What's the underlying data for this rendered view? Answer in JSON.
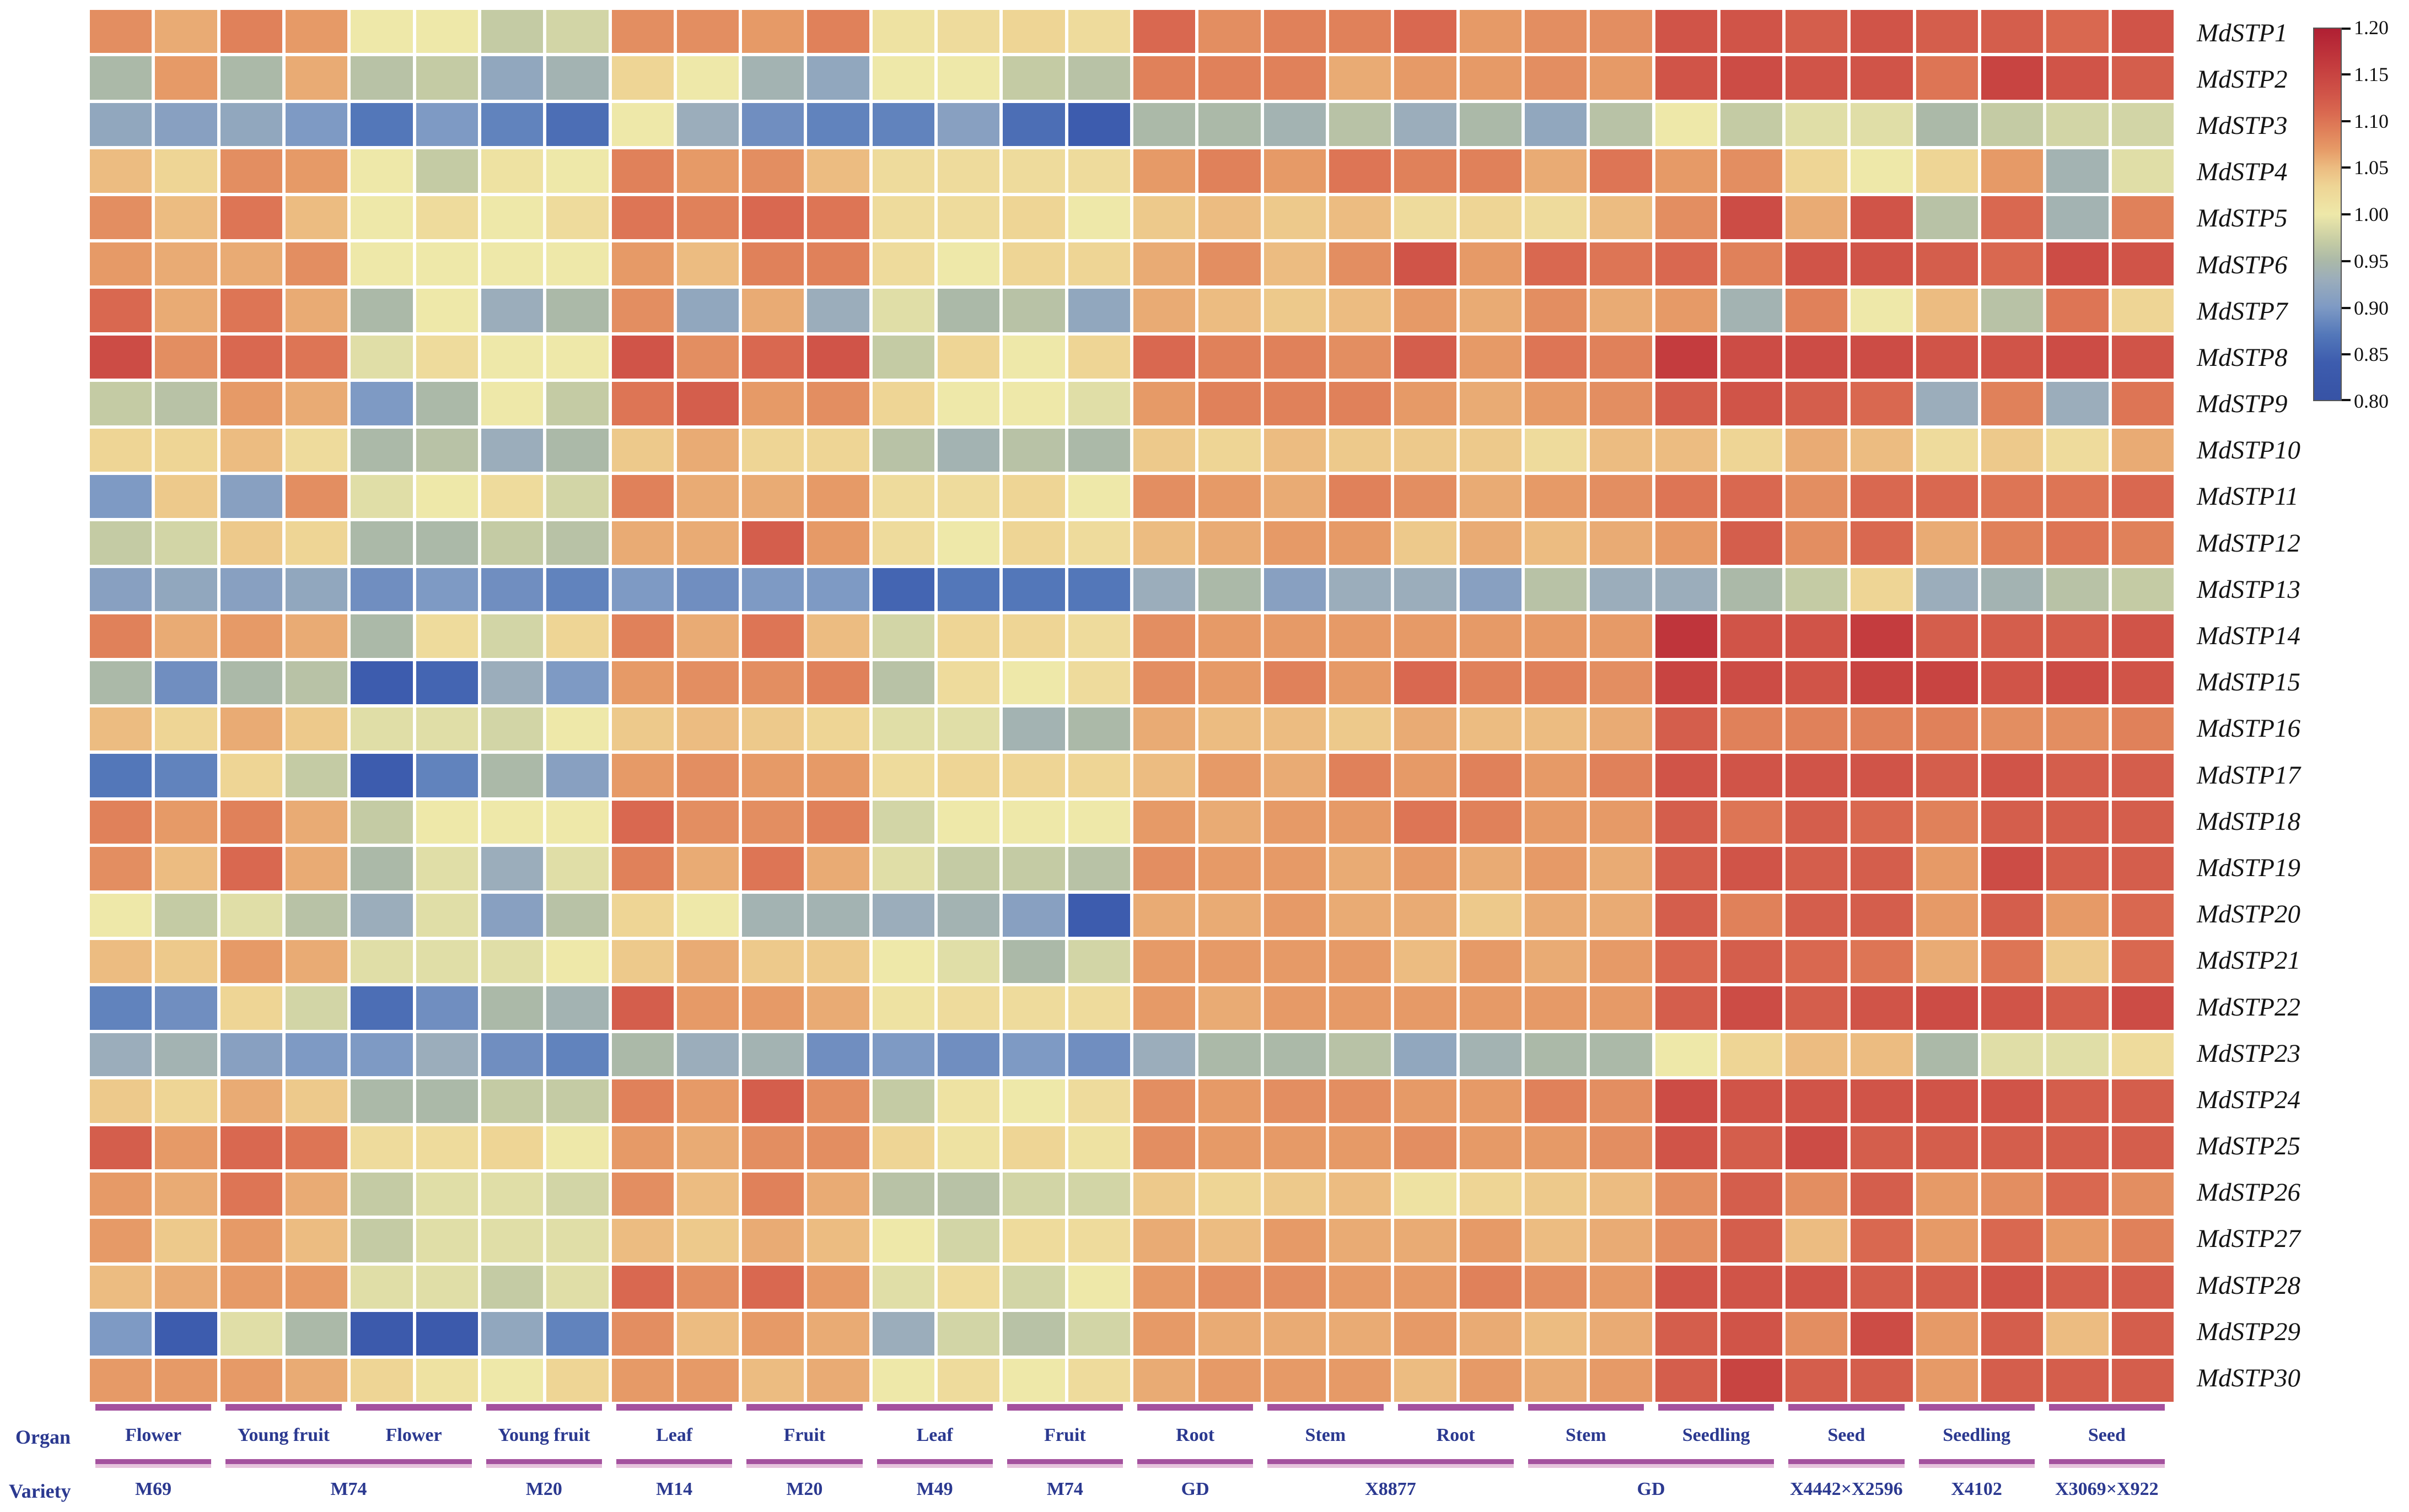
{
  "labels": {
    "organ": "Organ",
    "variety": "Variety"
  },
  "colorbar": {
    "tick_labels": [
      "1.20",
      "1.15",
      "1.10",
      "1.05",
      "1.00",
      "0.95",
      "0.90",
      "0.85",
      "0.80"
    ],
    "vmin": 0.8,
    "vmax": 1.2
  },
  "organ_groups": [
    {
      "label": "Flower",
      "span": 2
    },
    {
      "label": "Young fruit",
      "span": 2
    },
    {
      "label": "Flower",
      "span": 2
    },
    {
      "label": "Young fruit",
      "span": 2
    },
    {
      "label": "Leaf",
      "span": 2
    },
    {
      "label": "Fruit",
      "span": 2
    },
    {
      "label": "Leaf",
      "span": 2
    },
    {
      "label": "Fruit",
      "span": 2
    },
    {
      "label": "Root",
      "span": 2
    },
    {
      "label": "Stem",
      "span": 2
    },
    {
      "label": "Root",
      "span": 2
    },
    {
      "label": "Stem",
      "span": 2
    },
    {
      "label": "Seedling",
      "span": 2
    },
    {
      "label": "Seed",
      "span": 2
    },
    {
      "label": "Seedling",
      "span": 2
    },
    {
      "label": "Seed",
      "span": 2
    }
  ],
  "variety_groups": [
    {
      "label": "M69",
      "span": 2
    },
    {
      "label": "M74",
      "span": 4
    },
    {
      "label": "M20",
      "span": 2
    },
    {
      "label": "M14",
      "span": 2
    },
    {
      "label": "M20",
      "span": 2
    },
    {
      "label": "M49",
      "span": 2
    },
    {
      "label": "M74",
      "span": 2
    },
    {
      "label": "GD",
      "span": 2
    },
    {
      "label": "X8877",
      "span": 4
    },
    {
      "label": "GD",
      "span": 4
    },
    {
      "label": "X4442×X2596",
      "span": 2
    },
    {
      "label": "X4102",
      "span": 2
    },
    {
      "label": "X3069×X922",
      "span": 2
    }
  ],
  "chart_data": {
    "type": "heatmap",
    "title": "",
    "rows": [
      "MdSTP1",
      "MdSTP2",
      "MdSTP3",
      "MdSTP4",
      "MdSTP5",
      "MdSTP6",
      "MdSTP7",
      "MdSTP8",
      "MdSTP9",
      "MdSTP10",
      "MdSTP11",
      "MdSTP12",
      "MdSTP13",
      "MdSTP14",
      "MdSTP15",
      "MdSTP16",
      "MdSTP17",
      "MdSTP18",
      "MdSTP19",
      "MdSTP20",
      "MdSTP21",
      "MdSTP22",
      "MdSTP23",
      "MdSTP24",
      "MdSTP25",
      "MdSTP26",
      "MdSTP27",
      "MdSTP28",
      "MdSTP29",
      "MdSTP30"
    ],
    "n_columns": 32,
    "column_group_note": "columns grouped in pairs by organ (16 groups) and by variety (13 groups), see organ_groups / variety_groups",
    "vmin": 0.8,
    "vmax": 1.2,
    "legend_ticks": [
      1.2,
      1.15,
      1.1,
      1.05,
      1.0,
      0.95,
      0.9,
      0.85,
      0.8
    ],
    "colormap_anchors": [
      [
        0.8,
        "#3753a5"
      ],
      [
        0.84,
        "#3d5cae"
      ],
      [
        0.87,
        "#5377b9"
      ],
      [
        0.9,
        "#7e9ac4"
      ],
      [
        0.93,
        "#9badbb"
      ],
      [
        0.95,
        "#abb9a8"
      ],
      [
        0.97,
        "#c4cba4"
      ],
      [
        1.0,
        "#eee8a9"
      ],
      [
        1.03,
        "#eed595"
      ],
      [
        1.05,
        "#ecbc81"
      ],
      [
        1.07,
        "#e69a67"
      ],
      [
        1.09,
        "#e0815a"
      ],
      [
        1.11,
        "#d96850"
      ],
      [
        1.13,
        "#d05448"
      ],
      [
        1.16,
        "#c43c3e"
      ],
      [
        1.2,
        "#b01f33"
      ]
    ],
    "values": [
      [
        1.08,
        1.06,
        1.09,
        1.07,
        1.0,
        1.0,
        0.97,
        0.98,
        1.08,
        1.08,
        1.07,
        1.09,
        1.01,
        1.02,
        1.03,
        1.02,
        1.11,
        1.08,
        1.09,
        1.09,
        1.11,
        1.07,
        1.08,
        1.08,
        1.13,
        1.13,
        1.12,
        1.13,
        1.12,
        1.12,
        1.11,
        1.13
      ],
      [
        0.95,
        1.07,
        0.95,
        1.06,
        0.96,
        0.97,
        0.92,
        0.94,
        1.03,
        1.0,
        0.94,
        0.92,
        1.0,
        1.0,
        0.97,
        0.96,
        1.09,
        1.09,
        1.09,
        1.06,
        1.07,
        1.07,
        1.08,
        1.07,
        1.13,
        1.14,
        1.13,
        1.13,
        1.1,
        1.15,
        1.13,
        1.12
      ],
      [
        0.92,
        0.91,
        0.92,
        0.9,
        0.87,
        0.9,
        0.88,
        0.86,
        1.0,
        0.93,
        0.89,
        0.88,
        0.88,
        0.91,
        0.86,
        0.84,
        0.95,
        0.95,
        0.94,
        0.96,
        0.93,
        0.95,
        0.92,
        0.96,
        1.0,
        0.97,
        0.99,
        0.99,
        0.95,
        0.97,
        0.98,
        0.98
      ],
      [
        1.05,
        1.03,
        1.08,
        1.07,
        1.0,
        0.97,
        1.01,
        1.0,
        1.09,
        1.07,
        1.08,
        1.05,
        1.02,
        1.02,
        1.02,
        1.02,
        1.07,
        1.09,
        1.07,
        1.1,
        1.09,
        1.09,
        1.06,
        1.1,
        1.07,
        1.08,
        1.03,
        1.0,
        1.03,
        1.07,
        0.94,
        0.99
      ],
      [
        1.08,
        1.05,
        1.1,
        1.05,
        1.0,
        1.02,
        1.0,
        1.02,
        1.1,
        1.09,
        1.11,
        1.1,
        1.02,
        1.02,
        1.03,
        1.0,
        1.04,
        1.05,
        1.04,
        1.05,
        1.02,
        1.03,
        1.02,
        1.05,
        1.08,
        1.14,
        1.06,
        1.13,
        0.96,
        1.11,
        0.94,
        1.09
      ],
      [
        1.07,
        1.06,
        1.06,
        1.08,
        1.0,
        1.0,
        1.0,
        1.0,
        1.07,
        1.05,
        1.09,
        1.09,
        1.02,
        1.0,
        1.03,
        1.03,
        1.06,
        1.08,
        1.05,
        1.08,
        1.13,
        1.07,
        1.11,
        1.1,
        1.11,
        1.09,
        1.13,
        1.13,
        1.12,
        1.11,
        1.14,
        1.13
      ],
      [
        1.11,
        1.06,
        1.1,
        1.06,
        0.95,
        1.0,
        0.93,
        0.95,
        1.08,
        0.92,
        1.06,
        0.93,
        0.99,
        0.95,
        0.96,
        0.92,
        1.06,
        1.05,
        1.04,
        1.05,
        1.07,
        1.06,
        1.08,
        1.06,
        1.07,
        0.94,
        1.09,
        1.0,
        1.05,
        0.96,
        1.1,
        1.03
      ],
      [
        1.14,
        1.08,
        1.11,
        1.1,
        0.99,
        1.02,
        1.0,
        1.0,
        1.13,
        1.08,
        1.11,
        1.13,
        0.97,
        1.03,
        1.0,
        1.03,
        1.11,
        1.09,
        1.09,
        1.08,
        1.12,
        1.07,
        1.1,
        1.09,
        1.16,
        1.14,
        1.14,
        1.14,
        1.13,
        1.13,
        1.14,
        1.13
      ],
      [
        0.97,
        0.96,
        1.07,
        1.06,
        0.9,
        0.95,
        1.0,
        0.97,
        1.1,
        1.12,
        1.07,
        1.08,
        1.03,
        1.0,
        1.0,
        0.99,
        1.07,
        1.09,
        1.09,
        1.09,
        1.07,
        1.06,
        1.07,
        1.08,
        1.12,
        1.13,
        1.12,
        1.11,
        0.93,
        1.09,
        0.93,
        1.1
      ],
      [
        1.03,
        1.03,
        1.05,
        1.02,
        0.95,
        0.96,
        0.93,
        0.95,
        1.04,
        1.06,
        1.03,
        1.03,
        0.96,
        0.94,
        0.96,
        0.95,
        1.04,
        1.03,
        1.05,
        1.04,
        1.04,
        1.04,
        1.02,
        1.05,
        1.05,
        1.03,
        1.06,
        1.05,
        1.02,
        1.04,
        1.02,
        1.06
      ],
      [
        0.9,
        1.04,
        0.91,
        1.08,
        0.99,
        1.0,
        1.02,
        0.98,
        1.09,
        1.06,
        1.06,
        1.07,
        1.02,
        1.02,
        1.03,
        1.0,
        1.08,
        1.07,
        1.06,
        1.09,
        1.08,
        1.06,
        1.07,
        1.08,
        1.1,
        1.11,
        1.08,
        1.11,
        1.11,
        1.1,
        1.1,
        1.11
      ],
      [
        0.97,
        0.98,
        1.04,
        1.03,
        0.95,
        0.95,
        0.97,
        0.96,
        1.06,
        1.06,
        1.12,
        1.07,
        1.02,
        1.0,
        1.03,
        1.02,
        1.05,
        1.06,
        1.07,
        1.07,
        1.04,
        1.06,
        1.05,
        1.06,
        1.07,
        1.12,
        1.08,
        1.11,
        1.06,
        1.09,
        1.1,
        1.09
      ],
      [
        0.91,
        0.92,
        0.91,
        0.92,
        0.89,
        0.9,
        0.89,
        0.88,
        0.9,
        0.89,
        0.9,
        0.9,
        0.85,
        0.87,
        0.87,
        0.87,
        0.93,
        0.95,
        0.91,
        0.93,
        0.93,
        0.91,
        0.96,
        0.93,
        0.93,
        0.95,
        0.97,
        1.03,
        0.93,
        0.94,
        0.96,
        0.97
      ],
      [
        1.09,
        1.06,
        1.07,
        1.06,
        0.95,
        1.02,
        0.98,
        1.03,
        1.09,
        1.06,
        1.1,
        1.05,
        0.98,
        1.03,
        1.03,
        1.02,
        1.08,
        1.07,
        1.07,
        1.07,
        1.07,
        1.07,
        1.07,
        1.07,
        1.17,
        1.13,
        1.13,
        1.16,
        1.12,
        1.12,
        1.12,
        1.13
      ],
      [
        0.95,
        0.89,
        0.95,
        0.96,
        0.84,
        0.85,
        0.93,
        0.9,
        1.07,
        1.08,
        1.08,
        1.09,
        0.96,
        1.02,
        1.0,
        1.02,
        1.08,
        1.07,
        1.09,
        1.07,
        1.11,
        1.09,
        1.09,
        1.08,
        1.15,
        1.14,
        1.13,
        1.15,
        1.15,
        1.13,
        1.14,
        1.13
      ],
      [
        1.05,
        1.03,
        1.06,
        1.04,
        0.99,
        0.99,
        0.98,
        1.0,
        1.04,
        1.05,
        1.04,
        1.03,
        0.99,
        0.99,
        0.94,
        0.95,
        1.06,
        1.05,
        1.05,
        1.04,
        1.06,
        1.05,
        1.05,
        1.06,
        1.12,
        1.09,
        1.09,
        1.09,
        1.09,
        1.08,
        1.08,
        1.09
      ],
      [
        0.87,
        0.88,
        1.03,
        0.97,
        0.84,
        0.88,
        0.95,
        0.91,
        1.07,
        1.08,
        1.07,
        1.07,
        1.02,
        1.03,
        1.03,
        1.03,
        1.05,
        1.07,
        1.06,
        1.09,
        1.07,
        1.09,
        1.07,
        1.09,
        1.13,
        1.13,
        1.13,
        1.13,
        1.12,
        1.13,
        1.12,
        1.12
      ],
      [
        1.09,
        1.07,
        1.09,
        1.06,
        0.97,
        1.0,
        1.0,
        1.0,
        1.11,
        1.08,
        1.08,
        1.09,
        0.98,
        1.0,
        1.0,
        1.0,
        1.07,
        1.06,
        1.07,
        1.07,
        1.1,
        1.09,
        1.07,
        1.07,
        1.12,
        1.1,
        1.12,
        1.11,
        1.09,
        1.12,
        1.12,
        1.12
      ],
      [
        1.08,
        1.05,
        1.11,
        1.06,
        0.95,
        0.99,
        0.93,
        0.99,
        1.09,
        1.06,
        1.1,
        1.06,
        0.99,
        0.97,
        0.97,
        0.96,
        1.08,
        1.07,
        1.07,
        1.06,
        1.07,
        1.06,
        1.07,
        1.06,
        1.12,
        1.13,
        1.12,
        1.12,
        1.07,
        1.14,
        1.12,
        1.12
      ],
      [
        1.0,
        0.97,
        0.99,
        0.96,
        0.93,
        0.99,
        0.91,
        0.96,
        1.03,
        1.0,
        0.94,
        0.94,
        0.93,
        0.94,
        0.91,
        0.84,
        1.06,
        1.06,
        1.07,
        1.06,
        1.06,
        1.04,
        1.06,
        1.06,
        1.12,
        1.09,
        1.12,
        1.12,
        1.07,
        1.12,
        1.07,
        1.11
      ],
      [
        1.05,
        1.04,
        1.07,
        1.06,
        0.99,
        0.99,
        0.99,
        1.0,
        1.04,
        1.06,
        1.04,
        1.04,
        1.0,
        0.99,
        0.95,
        0.98,
        1.07,
        1.07,
        1.07,
        1.07,
        1.05,
        1.07,
        1.06,
        1.07,
        1.11,
        1.12,
        1.11,
        1.1,
        1.06,
        1.1,
        1.04,
        1.11
      ],
      [
        0.88,
        0.89,
        1.03,
        0.98,
        0.86,
        0.89,
        0.95,
        0.94,
        1.12,
        1.07,
        1.07,
        1.06,
        1.01,
        1.02,
        1.02,
        1.02,
        1.07,
        1.06,
        1.07,
        1.07,
        1.07,
        1.07,
        1.07,
        1.07,
        1.12,
        1.14,
        1.12,
        1.13,
        1.14,
        1.13,
        1.12,
        1.14
      ],
      [
        0.93,
        0.94,
        0.91,
        0.9,
        0.9,
        0.93,
        0.89,
        0.88,
        0.95,
        0.93,
        0.94,
        0.89,
        0.9,
        0.89,
        0.9,
        0.89,
        0.93,
        0.95,
        0.95,
        0.96,
        0.92,
        0.94,
        0.95,
        0.95,
        1.0,
        1.03,
        1.05,
        1.05,
        0.95,
        0.99,
        0.99,
        1.02
      ],
      [
        1.04,
        1.03,
        1.06,
        1.04,
        0.95,
        0.95,
        0.97,
        0.97,
        1.09,
        1.07,
        1.12,
        1.08,
        0.97,
        1.01,
        1.0,
        1.02,
        1.08,
        1.07,
        1.08,
        1.08,
        1.07,
        1.07,
        1.09,
        1.08,
        1.14,
        1.13,
        1.13,
        1.13,
        1.13,
        1.13,
        1.12,
        1.12
      ],
      [
        1.12,
        1.07,
        1.11,
        1.1,
        1.02,
        1.02,
        1.03,
        1.0,
        1.07,
        1.06,
        1.08,
        1.08,
        1.03,
        1.01,
        1.03,
        1.01,
        1.08,
        1.07,
        1.07,
        1.07,
        1.08,
        1.07,
        1.07,
        1.08,
        1.13,
        1.12,
        1.14,
        1.12,
        1.12,
        1.12,
        1.12,
        1.12
      ],
      [
        1.07,
        1.06,
        1.1,
        1.06,
        0.97,
        0.99,
        0.99,
        0.98,
        1.08,
        1.05,
        1.09,
        1.06,
        0.96,
        0.96,
        0.98,
        0.98,
        1.04,
        1.03,
        1.04,
        1.05,
        1.01,
        1.03,
        1.04,
        1.05,
        1.08,
        1.12,
        1.08,
        1.12,
        1.07,
        1.08,
        1.11,
        1.08
      ],
      [
        1.07,
        1.04,
        1.07,
        1.05,
        0.97,
        0.99,
        0.99,
        0.99,
        1.05,
        1.04,
        1.06,
        1.05,
        1.0,
        0.98,
        1.02,
        1.02,
        1.06,
        1.05,
        1.07,
        1.06,
        1.06,
        1.07,
        1.05,
        1.06,
        1.08,
        1.12,
        1.05,
        1.11,
        1.07,
        1.11,
        1.07,
        1.09
      ],
      [
        1.05,
        1.06,
        1.07,
        1.07,
        0.99,
        0.99,
        0.97,
        0.99,
        1.11,
        1.08,
        1.11,
        1.07,
        0.99,
        1.02,
        0.98,
        1.0,
        1.07,
        1.08,
        1.08,
        1.07,
        1.07,
        1.09,
        1.08,
        1.07,
        1.13,
        1.13,
        1.13,
        1.12,
        1.12,
        1.13,
        1.12,
        1.12
      ],
      [
        0.9,
        0.84,
        0.99,
        0.95,
        0.83,
        0.83,
        0.92,
        0.88,
        1.08,
        1.05,
        1.07,
        1.06,
        0.93,
        0.98,
        0.96,
        0.98,
        1.07,
        1.06,
        1.06,
        1.06,
        1.07,
        1.06,
        1.05,
        1.06,
        1.12,
        1.13,
        1.08,
        1.14,
        1.07,
        1.12,
        1.05,
        1.12
      ],
      [
        1.07,
        1.07,
        1.07,
        1.06,
        1.03,
        1.01,
        1.0,
        1.03,
        1.07,
        1.07,
        1.05,
        1.06,
        1.0,
        1.02,
        1.0,
        1.02,
        1.06,
        1.07,
        1.07,
        1.07,
        1.05,
        1.07,
        1.06,
        1.07,
        1.12,
        1.15,
        1.12,
        1.12,
        1.07,
        1.12,
        1.12,
        1.12
      ]
    ]
  }
}
